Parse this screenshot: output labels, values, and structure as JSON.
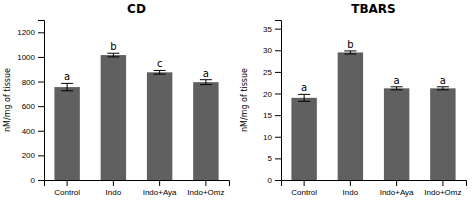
{
  "chart_data": [
    {
      "type": "bar",
      "title": "CD",
      "categories": [
        "Control",
        "Indo",
        "Indo+Aya",
        "Indo+Omz"
      ],
      "values": [
        755,
        1015,
        875,
        795
      ],
      "errors": [
        30,
        15,
        15,
        20
      ],
      "annotations": [
        "a",
        "b",
        "c",
        "a"
      ],
      "ylabel": "nM/mg of tissue",
      "ylim": [
        0,
        1300
      ],
      "yticks": [
        0,
        200,
        400,
        600,
        800,
        1000,
        1200
      ],
      "color": "#606060",
      "grid": false
    },
    {
      "type": "bar",
      "title": "TBARS",
      "categories": [
        "Control",
        "Indo",
        "Indo+Aya",
        "Indo+Omz"
      ],
      "values": [
        19.0,
        29.5,
        21.2,
        21.2
      ],
      "errors": [
        0.8,
        0.35,
        0.35,
        0.35
      ],
      "annotations": [
        "a",
        "b",
        "a",
        "a"
      ],
      "ylabel": "nM/mg of tissue",
      "ylim": [
        0,
        37
      ],
      "yticks": [
        0,
        5,
        10,
        15,
        20,
        25,
        30,
        35
      ],
      "color": "#606060",
      "grid": false
    }
  ]
}
